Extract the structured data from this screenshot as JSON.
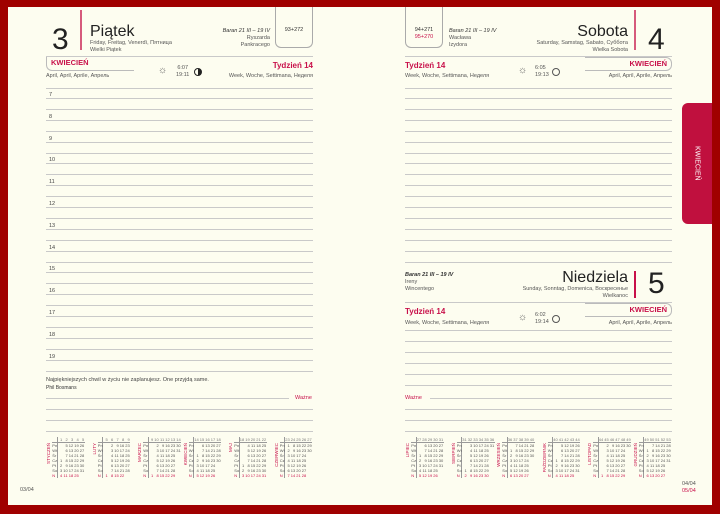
{
  "left": {
    "day_number": "3",
    "day_name": "Piątek",
    "day_translations": "Friday, Freitag, Venerdì, Пятница",
    "holiday": "Wielki Piątek",
    "zodiac": "Baran 21 III – 19 IV",
    "namedays": [
      "Ryszarda",
      "Pankracego"
    ],
    "day_count": "93+272",
    "month": "KWIECIEŃ",
    "month_translations": "April, April, Aprile, Апрель",
    "sunrise": "6:07",
    "sunset": "19:11",
    "week": "Tydzień 14",
    "week_translations": "Week, Woche, Settimana, Неделя",
    "hours": [
      "7",
      "8",
      "9",
      "10",
      "11",
      "12",
      "13",
      "14",
      "15",
      "16",
      "17",
      "18",
      "19"
    ],
    "quote": "Najpiękniejszych chwil w życiu nie zaplanujesz. One przyjdą same.",
    "quote_author": "Phil Bosmans",
    "important": "Ważne",
    "page_date": "03/04"
  },
  "right": {
    "saturday": {
      "day_number": "4",
      "day_name": "Sobota",
      "day_translations": "Saturday, Samstag, Sabato, Суббота",
      "holiday": "Wielka Sobota",
      "zodiac": "Baran 21 III – 19 IV",
      "namedays": [
        "Wacława",
        "Izydora"
      ],
      "day_count": "94+271",
      "day_count_alt": "95+270",
      "week": "Tydzień 14",
      "week_translations": "Week, Woche, Settimana, Неделя",
      "sunrise": "6:05",
      "sunset": "19:13",
      "month": "KWIECIEŃ",
      "month_translations": "April, April, Aprile, Апрель"
    },
    "sunday": {
      "day_number": "5",
      "day_name": "Niedziela",
      "day_translations": "Sunday, Sonntag, Domenica, Воскресенье",
      "holiday": "Wielkanoc",
      "zodiac": "Baran 21 III – 19 IV",
      "namedays": [
        "Ireny",
        "Wincentego"
      ],
      "week": "Tydzień 14",
      "week_translations": "Week, Woche, Settimana, Неделя",
      "sunrise": "6:02",
      "sunset": "19:14",
      "month": "KWIECIEŃ",
      "month_translations": "April, April, Aprile, Апрель"
    },
    "important": "Ważne",
    "page_date": "04/04",
    "page_date_alt": "05/04"
  },
  "tab_label": "KWIECIEŃ",
  "weekdays": [
    "Pn",
    "Wt",
    "Śr",
    "Cz",
    "Pt",
    "So",
    "N"
  ],
  "mini_calendars": [
    {
      "name": "STYCZEŃ",
      "offset": 3,
      "days": 31,
      "first_week": 1
    },
    {
      "name": "LUTY",
      "offset": 6,
      "days": 28,
      "first_week": 5
    },
    {
      "name": "MARZEC",
      "offset": 6,
      "days": 31,
      "first_week": 9
    },
    {
      "name": "KWIECIEŃ",
      "offset": 2,
      "days": 30,
      "first_week": 14
    },
    {
      "name": "MAJ",
      "offset": 4,
      "days": 31,
      "first_week": 18
    },
    {
      "name": "CZERWIEC",
      "offset": 0,
      "days": 30,
      "first_week": 23
    },
    {
      "name": "LIPIEC",
      "offset": 2,
      "days": 31,
      "first_week": 27
    },
    {
      "name": "SIERPIEŃ",
      "offset": 5,
      "days": 31,
      "first_week": 31
    },
    {
      "name": "WRZESIEŃ",
      "offset": 1,
      "days": 30,
      "first_week": 36
    },
    {
      "name": "PAŹDZIERNIK",
      "offset": 3,
      "days": 31,
      "first_week": 40
    },
    {
      "name": "LISTOPAD",
      "offset": 6,
      "days": 30,
      "first_week": 44
    },
    {
      "name": "GRUDZIEŃ",
      "offset": 1,
      "days": 31,
      "first_week": 49
    }
  ],
  "colors": {
    "frame": "#a00000",
    "accent": "#c8104a",
    "paper": "#fdfdf0"
  }
}
